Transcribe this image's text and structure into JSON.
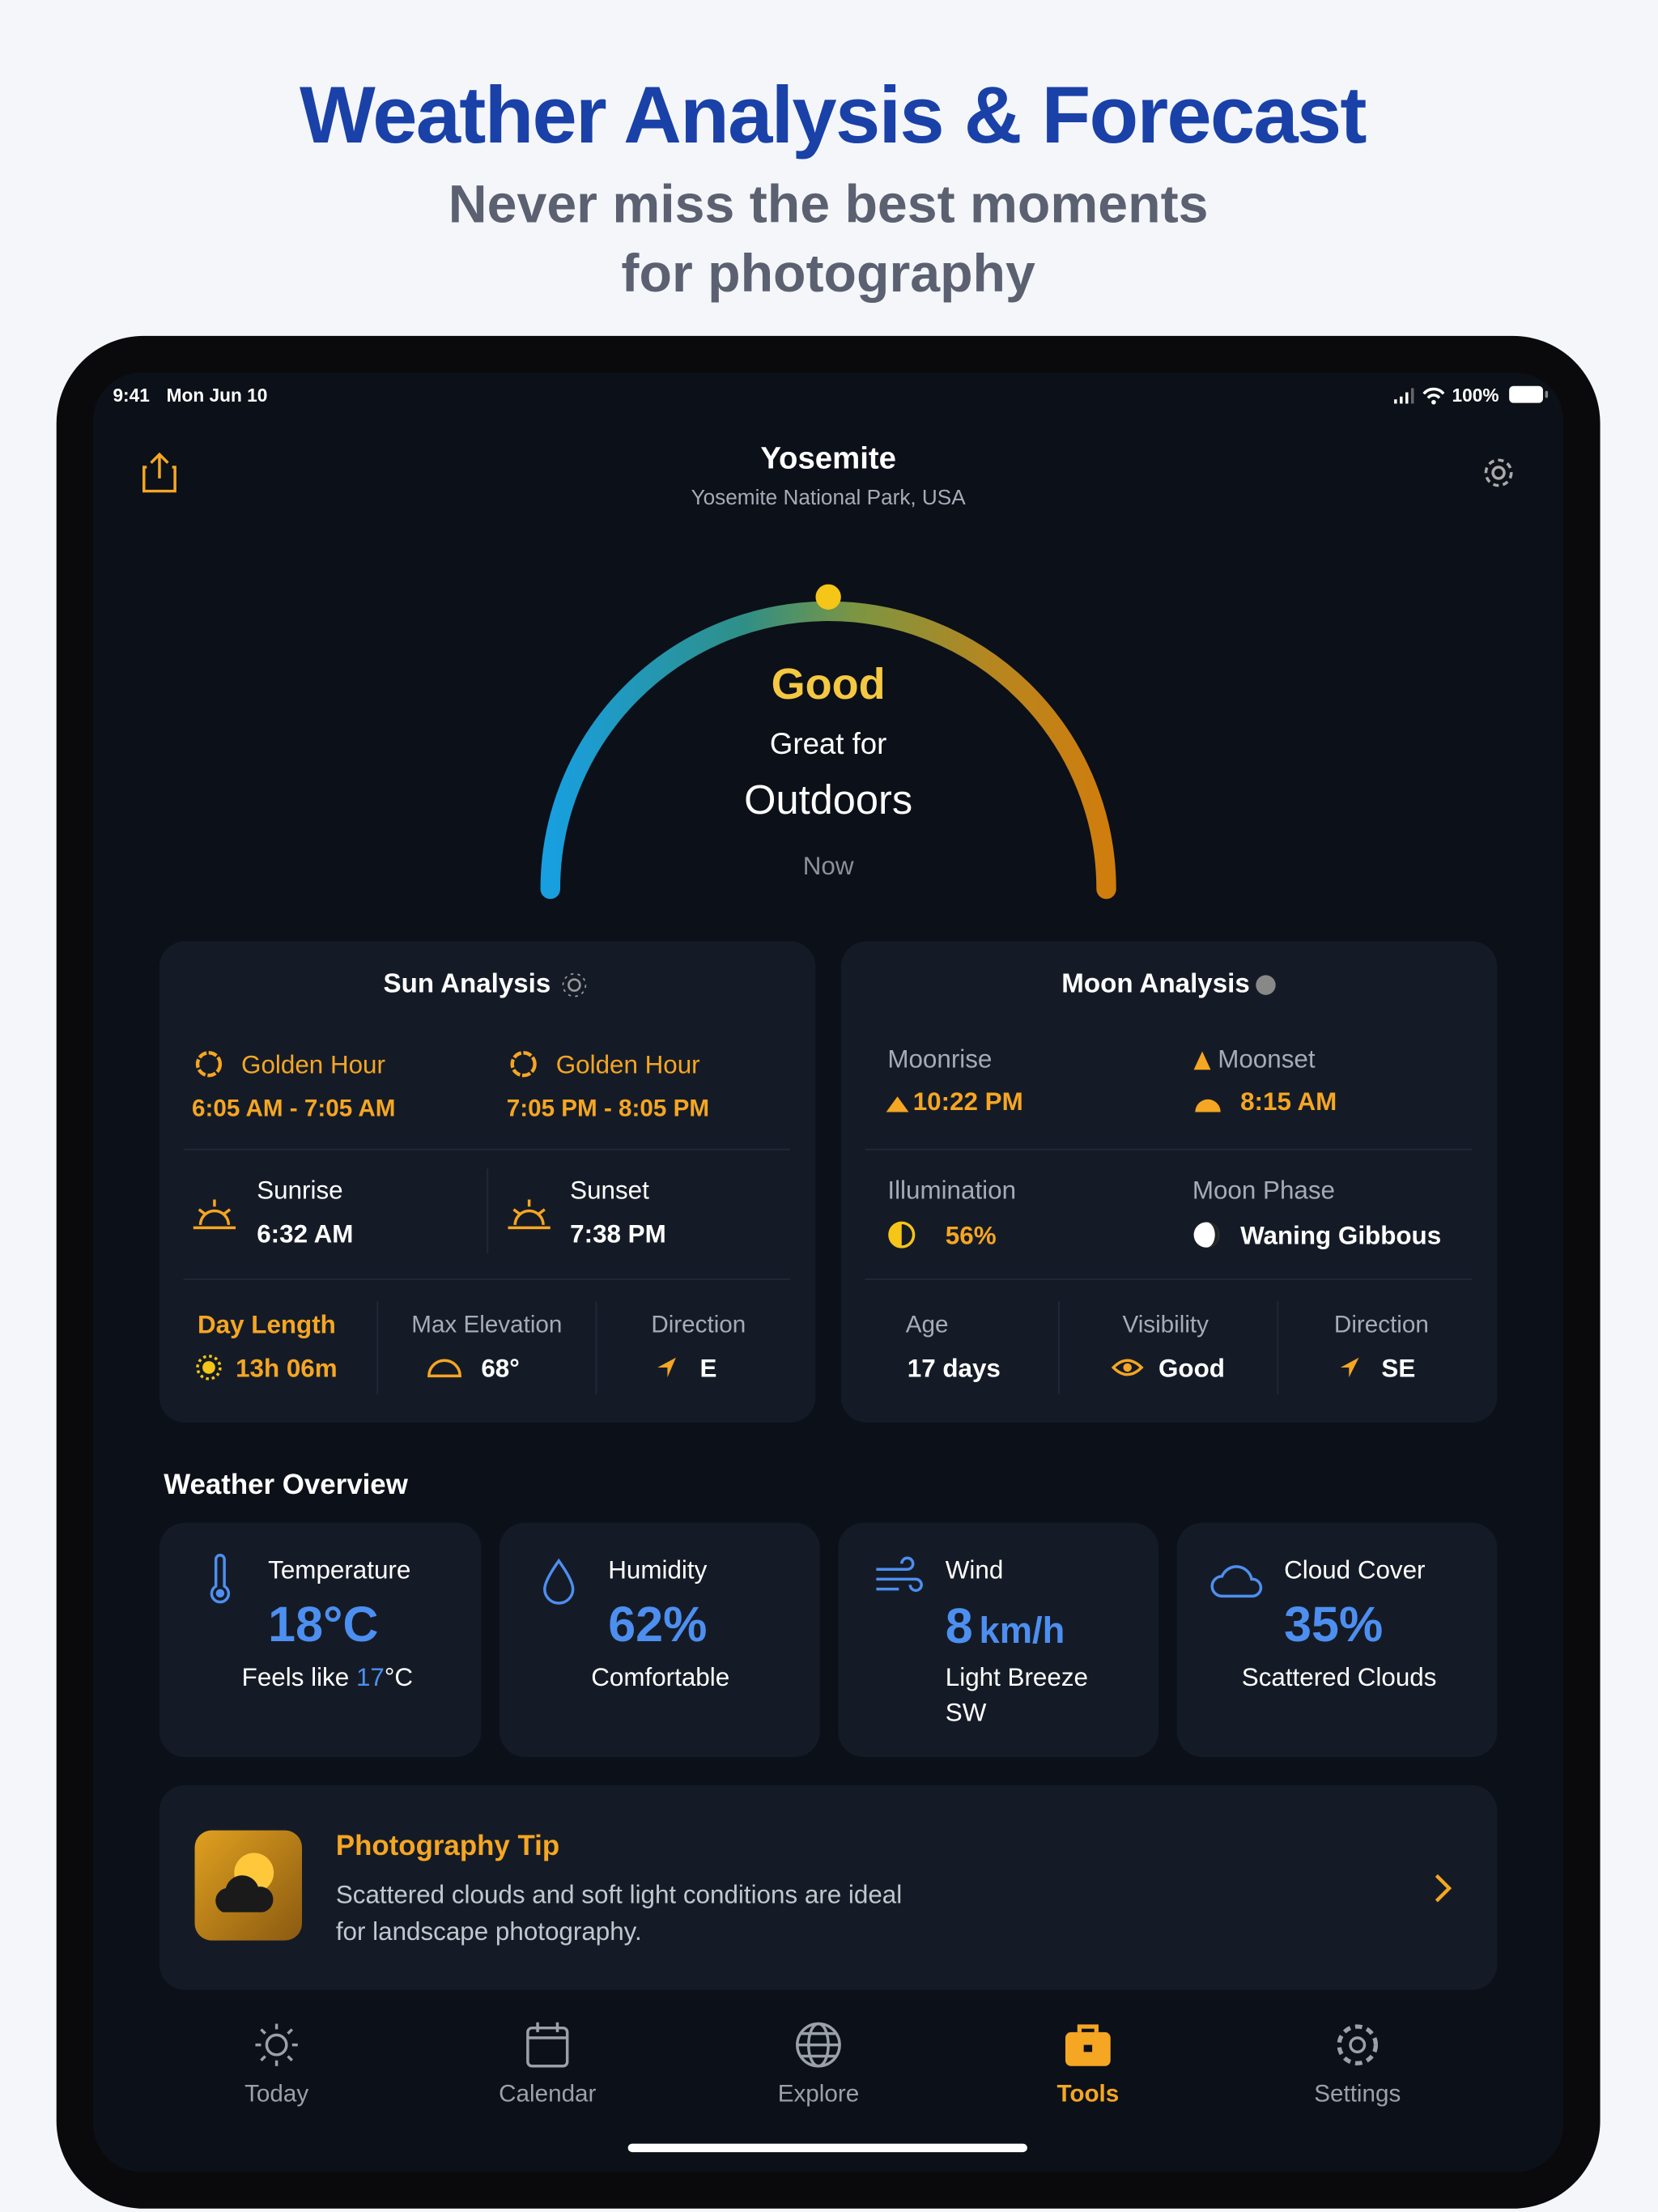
{
  "header": {
    "title": "Weather Analysis & Forecast",
    "subtitle": [
      "Never miss the best moments",
      "for photography"
    ]
  },
  "status_bar": {
    "time": "9:41",
    "date": "Mon Jun 10",
    "battery": "100%"
  },
  "location": {
    "name": "Yosemite",
    "region": "Yosemite National Park, USA"
  },
  "condition": {
    "rating": "Good",
    "line1": "Great for",
    "line2": "Outdoors",
    "period": "Now"
  },
  "sun_analysis": {
    "title": "Sun Analysis",
    "golden_hours": [
      {
        "label": "Golden Hour",
        "time": "6:05 AM - 7:05 AM"
      },
      {
        "label": "Golden Hour",
        "time": "7:05 PM - 8:05 PM"
      }
    ],
    "events": [
      {
        "label": "Sunrise",
        "time": "6:32 AM"
      },
      {
        "label": "Sunset",
        "time": "7:38 PM"
      }
    ],
    "stats": [
      {
        "label": "Day Length",
        "value": "13h 06m"
      },
      {
        "label": "Max Elevation",
        "value": "68°"
      },
      {
        "label": "Direction",
        "value": "E"
      }
    ]
  },
  "moon_analysis": {
    "title": "Moon Analysis",
    "events": [
      {
        "label": "Moonrise",
        "time": "10:22 PM"
      },
      {
        "label": "Moonset",
        "time": "8:15 AM"
      }
    ],
    "details": [
      {
        "label": "Illumination",
        "value": "56%"
      },
      {
        "label": "Moon Phase",
        "value": "Waning Gibbous"
      }
    ],
    "stats": [
      {
        "label": "Age",
        "value": "17 days"
      },
      {
        "label": "Visibility",
        "value": "Good"
      },
      {
        "label": "Direction",
        "value": "SE"
      }
    ]
  },
  "weather_overview": {
    "title": "Weather Overview",
    "temperature": {
      "label": "Temperature",
      "value": "18°C",
      "note": "Feels like",
      "note_value": "17",
      "note_unit": "°C"
    },
    "humidity": {
      "label": "Humidity",
      "value": "62%",
      "note": "Comfortable"
    },
    "wind": {
      "label": "Wind",
      "value": "8",
      "unit": "km/h",
      "note": [
        "Light Breeze",
        "SW"
      ]
    },
    "cloud_cover": {
      "label": "Cloud Cover",
      "value": "35%",
      "note": "Scattered Clouds"
    }
  },
  "photo_tip": {
    "title": "Photography Tip",
    "text": [
      "Scattered clouds and soft light conditions are ideal",
      "for landscape photography."
    ]
  },
  "tab_bar": {
    "tabs": [
      "Today",
      "Calendar",
      "Explore",
      "Tools",
      "Settings"
    ],
    "active": 3
  }
}
